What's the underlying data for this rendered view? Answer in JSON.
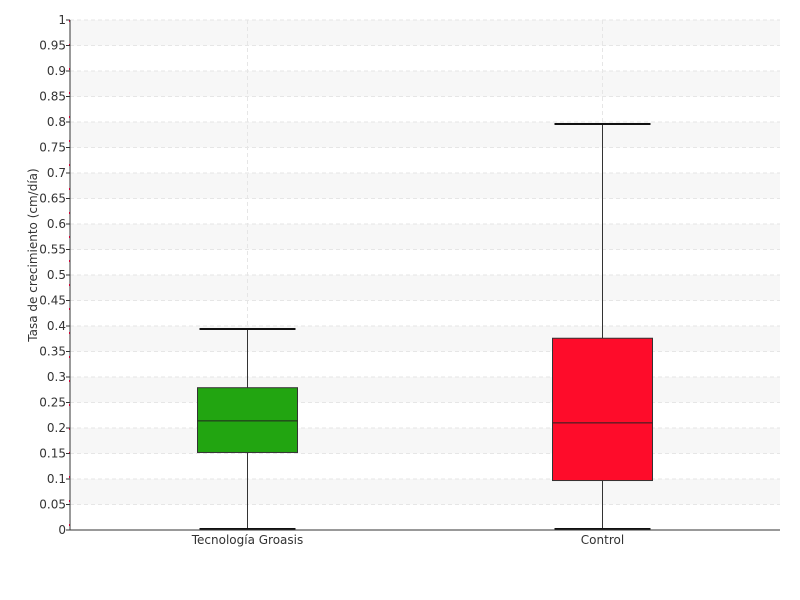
{
  "chart_data": {
    "type": "boxplot",
    "title": "",
    "xlabel": "",
    "ylabel": "Tasa de crecimiento (cm/día)",
    "ylim": [
      0,
      1
    ],
    "yticks": [
      "0",
      "0.05",
      "0.1",
      "0.15",
      "0.2",
      "0.25",
      "0.3",
      "0.35",
      "0.4",
      "0.45",
      "0.5",
      "0.55",
      "0.6",
      "0.65",
      "0.7",
      "0.75",
      "0.8",
      "0.85",
      "0.9",
      "0.95",
      "1"
    ],
    "categories": [
      "Tecnología Groasis",
      "Control"
    ],
    "boxes": [
      {
        "category": "Tecnología Groasis",
        "min": 0.0,
        "q1": 0.152,
        "median": 0.214,
        "q3": 0.279,
        "max": 0.394,
        "color": "#22a511"
      },
      {
        "category": "Control",
        "min": 0.0,
        "q1": 0.097,
        "median": 0.21,
        "q3": 0.376,
        "max": 0.796,
        "color": "#fe0c2a"
      }
    ],
    "grid": true,
    "legend": "none"
  }
}
